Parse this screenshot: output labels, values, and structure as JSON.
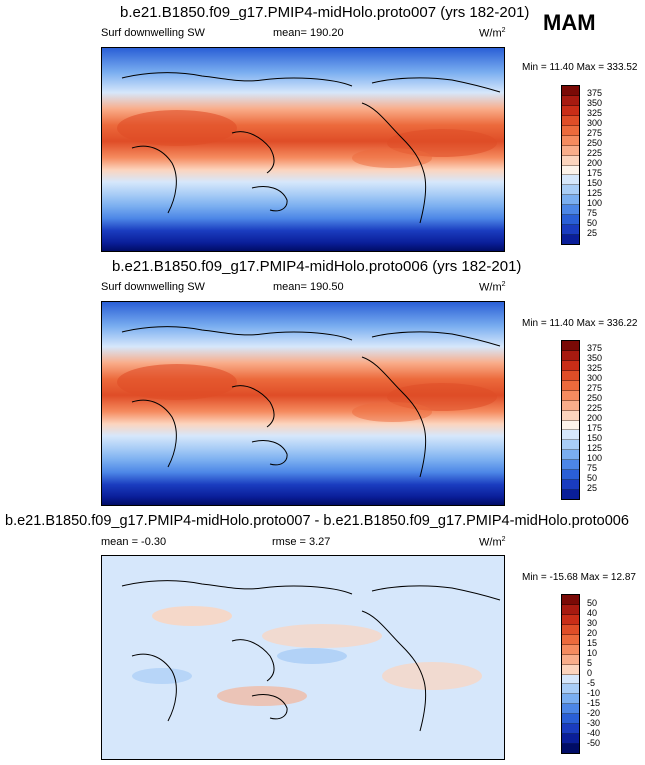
{
  "season": "MAM",
  "variable": "Surf downwelling SW",
  "units_base": "W/m",
  "units_exp": "2",
  "panels": [
    {
      "title": "b.e21.B1850.f09_g17.PMIP4-midHolo.proto007 (yrs 182-201)",
      "left_label": "Surf downwelling SW",
      "stat_label": "mean= 190.20",
      "minmax": "Min = 11.40 Max = 333.52",
      "kind": "abs"
    },
    {
      "title": "b.e21.B1850.f09_g17.PMIP4-midHolo.proto006 (yrs 182-201)",
      "left_label": "Surf downwelling SW",
      "stat_label": "mean= 190.50",
      "minmax": "Min = 11.40 Max = 336.22",
      "kind": "abs"
    },
    {
      "title": "b.e21.B1850.f09_g17.PMIP4-midHolo.proto007 - b.e21.B1850.f09_g17.PMIP4-midHolo.proto006",
      "left_label": "mean =  -0.30",
      "stat_label": "rmse =  3.27",
      "minmax": "Min = -15.68 Max = 12.87",
      "kind": "diff"
    }
  ],
  "colorbar_abs": {
    "labels": [
      "375",
      "350",
      "325",
      "300",
      "275",
      "250",
      "225",
      "200",
      "175",
      "150",
      "125",
      "100",
      "75",
      "50",
      "25"
    ],
    "colors": [
      "#7a0a06",
      "#a71a10",
      "#c92d17",
      "#df4d27",
      "#ec6a3c",
      "#f58b5f",
      "#f9ad8a",
      "#fcd4bd",
      "#fdf3ea",
      "#d6e7fb",
      "#a9cdf6",
      "#7aaef0",
      "#4c86e6",
      "#2a5fd6",
      "#1a3cbf",
      "#0a1e99",
      "#000c66"
    ]
  },
  "colorbar_diff": {
    "labels": [
      "50",
      "40",
      "30",
      "20",
      "15",
      "10",
      "5",
      "0",
      "-5",
      "-10",
      "-15",
      "-20",
      "-30",
      "-40",
      "-50"
    ],
    "colors": [
      "#7a0a06",
      "#a71a10",
      "#c92d17",
      "#df4d27",
      "#ec6a3c",
      "#f58b5f",
      "#f9ad8a",
      "#fcd4bd",
      "#d6e7fb",
      "#a9cdf6",
      "#7aaef0",
      "#4c86e6",
      "#2a5fd6",
      "#1a3cbf",
      "#0a1e99",
      "#000c66"
    ]
  }
}
